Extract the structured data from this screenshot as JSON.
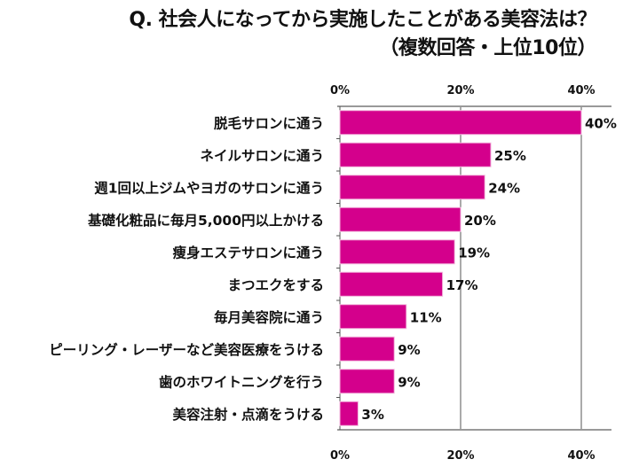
{
  "chart_data": {
    "type": "bar",
    "orientation": "horizontal",
    "title": "Q. 社会人になってから実施したことがある美容法は？",
    "subtitle": "（複数回答・上位10位）",
    "categories": [
      "脱毛サロンに通う",
      "ネイルサロンに通う",
      "週1回以上ジムやヨガのサロンに通う",
      "基礎化粧品に毎月5,000円以上かける",
      "痩身エステサロンに通う",
      "まつエクをする",
      "毎月美容院に通う",
      "ピーリング・レーザーなど美容医療をうける",
      "歯のホワイトニングを行う",
      "美容注射・点滴をうける"
    ],
    "values": [
      40,
      25,
      24,
      20,
      19,
      17,
      11,
      9,
      9,
      3
    ],
    "data_labels": [
      "40%",
      "25%",
      "24%",
      "20%",
      "19%",
      "17%",
      "11%",
      "9%",
      "9%",
      "3%"
    ],
    "x_ticks": [
      "0%",
      "20%",
      "40%"
    ],
    "x_tick_values": [
      0,
      20,
      40
    ],
    "xlim": [
      0,
      45
    ],
    "grid": true,
    "bar_color": "#d4008c",
    "axis_labels_position": "top and bottom"
  }
}
